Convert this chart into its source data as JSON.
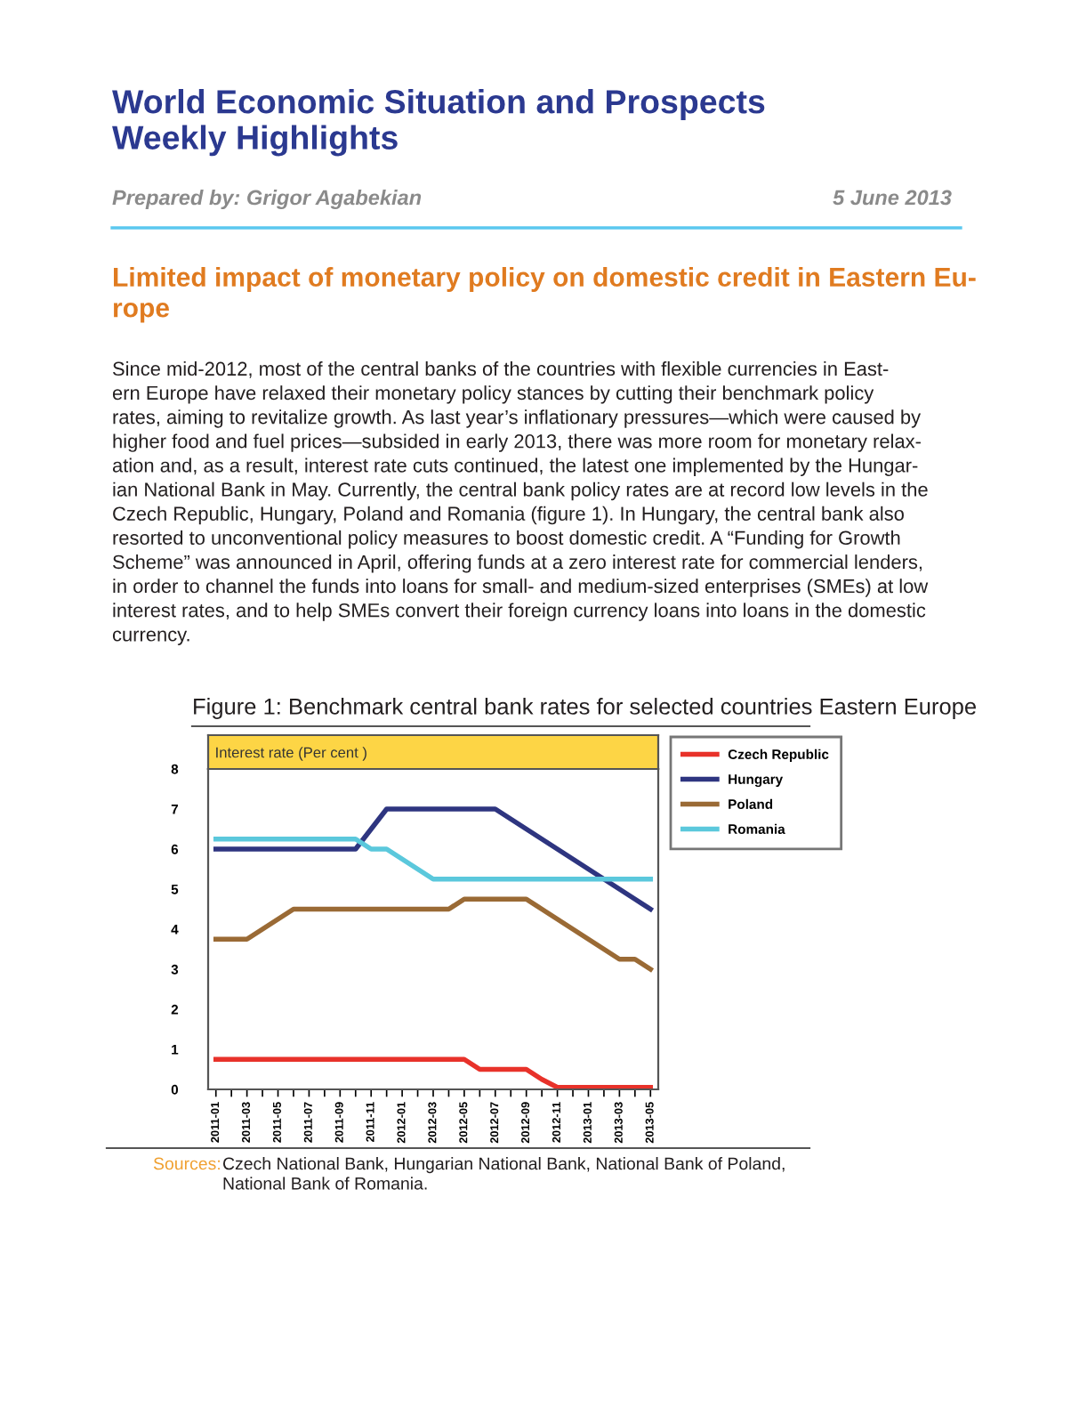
{
  "chart_data": {
    "type": "line",
    "title": "Figure 1: Benchmark central bank rates for selected countries Eastern Europe",
    "ylabel": "Interest rate (Per cent )",
    "categories": [
      "2011-01",
      null,
      "2011-03",
      null,
      "2011-05",
      null,
      "2011-07",
      null,
      "2011-09",
      null,
      "2011-11",
      null,
      "2012-01",
      null,
      "2012-03",
      null,
      "2012-05",
      null,
      "2012-07",
      null,
      "2012-09",
      null,
      "2012-11",
      null,
      "2013-01",
      null,
      "2013-03",
      null,
      "2013-05"
    ],
    "series": [
      {
        "name": "Czech Republic",
        "color": "#e8322a",
        "values": [
          0.75,
          0.75,
          0.75,
          0.75,
          0.75,
          0.75,
          0.75,
          0.75,
          0.75,
          0.75,
          0.75,
          0.75,
          0.75,
          0.75,
          0.75,
          0.75,
          0.75,
          0.5,
          0.5,
          0.5,
          0.5,
          0.25,
          0.05,
          0.05,
          0.05,
          0.05,
          0.05,
          0.05,
          0.05
        ]
      },
      {
        "name": "Hungary",
        "color": "#2e3580",
        "values": [
          6.0,
          6.0,
          6.0,
          6.0,
          6.0,
          6.0,
          6.0,
          6.0,
          6.0,
          6.0,
          6.5,
          7.0,
          7.0,
          7.0,
          7.0,
          7.0,
          7.0,
          7.0,
          7.0,
          6.75,
          6.5,
          6.25,
          6.0,
          5.75,
          5.5,
          5.25,
          5.0,
          4.75,
          4.5
        ]
      },
      {
        "name": "Poland",
        "color": "#9a6a35",
        "values": [
          3.75,
          3.75,
          3.75,
          4.0,
          4.25,
          4.5,
          4.5,
          4.5,
          4.5,
          4.5,
          4.5,
          4.5,
          4.5,
          4.5,
          4.5,
          4.5,
          4.75,
          4.75,
          4.75,
          4.75,
          4.75,
          4.5,
          4.25,
          4.0,
          3.75,
          3.5,
          3.25,
          3.25,
          3.0
        ]
      },
      {
        "name": "Romania",
        "color": "#5bc8dc",
        "values": [
          6.25,
          6.25,
          6.25,
          6.25,
          6.25,
          6.25,
          6.25,
          6.25,
          6.25,
          6.25,
          6.0,
          6.0,
          5.75,
          5.5,
          5.25,
          5.25,
          5.25,
          5.25,
          5.25,
          5.25,
          5.25,
          5.25,
          5.25,
          5.25,
          5.25,
          5.25,
          5.25,
          5.25,
          5.25
        ]
      }
    ],
    "ylim": [
      0,
      8
    ],
    "yticks": [
      0,
      1,
      2,
      3,
      4,
      5,
      6,
      7,
      8
    ],
    "legend": "top right",
    "marker": "none",
    "line_style": "solid",
    "annotations": [
      "World Economic Situation and Prospects\nWeekly Highlights",
      "Prepared by: Grigor Agabekian",
      "5 June 2013",
      "Limited impact of monetary policy on domestic credit in Eastern Eu-\nrope",
      "Since mid-2012, most of the central banks of the countries with flexible currencies in East-\nern Europe have relaxed their monetary policy stances by cutting their benchmark policy\nrates, aiming to revitalize growth. As last year’s inflationary pressures—which were caused by\nhigher food and fuel prices—subsided in early 2013, there was more room for monetary relax-\nation and, as a result, interest rate cuts continued, the latest one implemented by the Hungar-\nian National Bank in May. Currently, the central bank policy rates are at record low levels in the\nCzech Republic, Hungary, Poland and Romania (figure 1). In Hungary, the central bank also\nresorted to unconventional policy measures to boost domestic credit. A “Funding for Growth\nScheme” was announced in April, offering funds at a zero interest rate for commercial lenders,\nin order to channel the funds into loans for small- and medium-sized enterprises (SMEs) at low\ninterest rates, and to help SMEs convert their foreign currency loans into loans in the domestic\ncurrency.",
      "Sources:",
      "Czech National Bank, Hungarian National Bank, National Bank of Poland,\nNational Bank of Romania."
    ]
  }
}
